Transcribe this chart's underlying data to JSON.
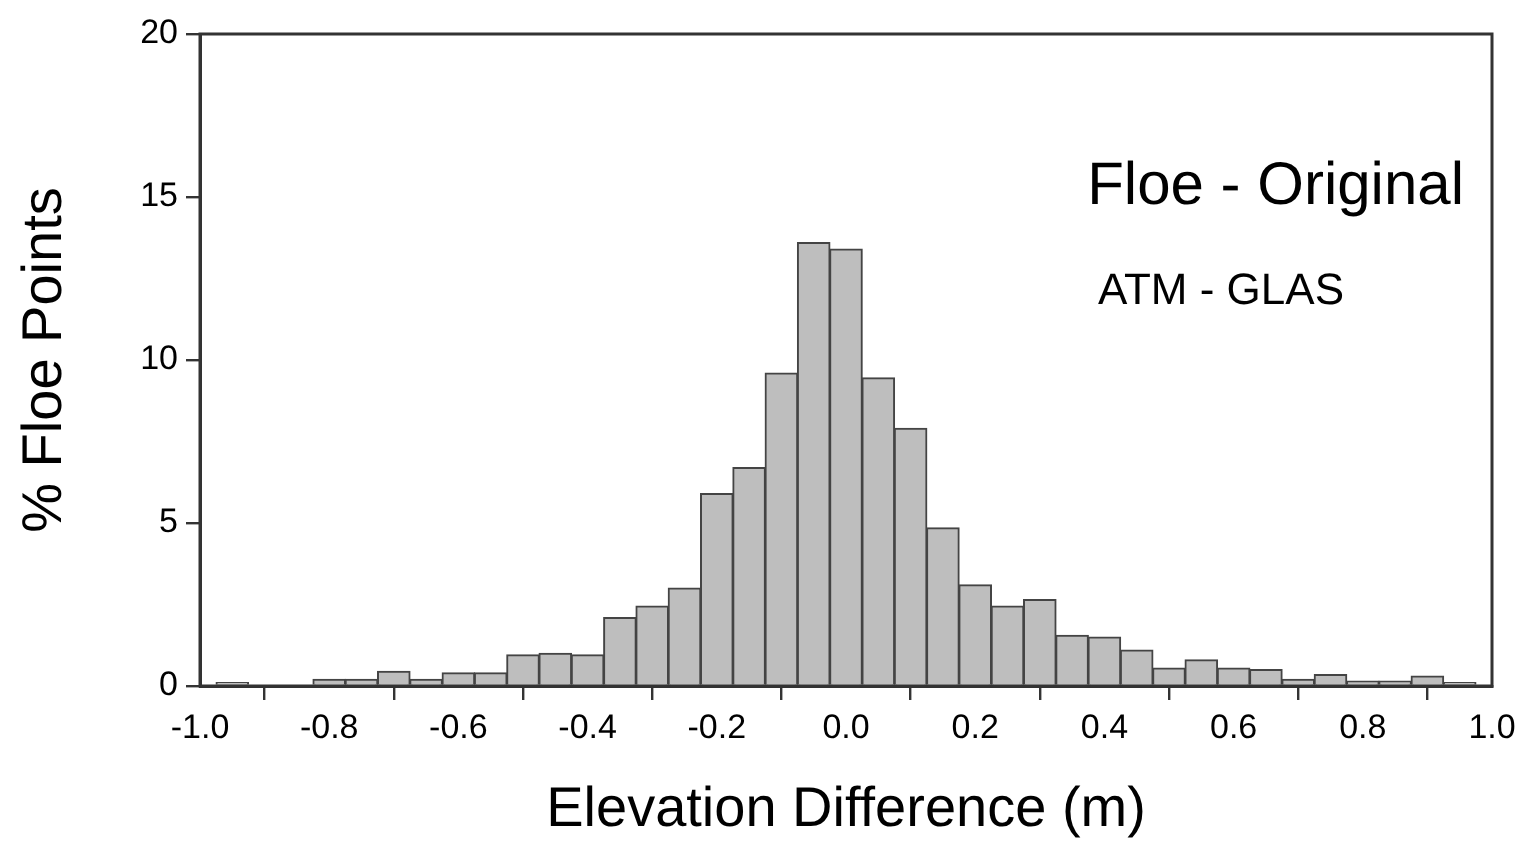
{
  "chart_data": {
    "type": "histogram",
    "xlabel": "Elevation Difference (m)",
    "ylabel": "% Floe Points",
    "annotations": [
      "Floe - Original",
      "ATM - GLAS"
    ],
    "bins": [
      -0.975,
      -0.925,
      -0.875,
      -0.825,
      -0.775,
      -0.725,
      -0.675,
      -0.625,
      -0.575,
      -0.525,
      -0.475,
      -0.425,
      -0.375,
      -0.325,
      -0.275,
      -0.225,
      -0.175,
      -0.125,
      -0.075,
      -0.025,
      0.025,
      0.075,
      0.125,
      0.175,
      0.225,
      0.275,
      0.325,
      0.375,
      0.425,
      0.475,
      0.525,
      0.575,
      0.625,
      0.675,
      0.725,
      0.775,
      0.825,
      0.875,
      0.925,
      0.975
    ],
    "values": [
      0.1,
      0,
      0,
      0.2,
      0.2,
      0.45,
      0.2,
      0.4,
      0.4,
      0.95,
      1.0,
      0.95,
      2.1,
      2.45,
      3.0,
      5.9,
      6.7,
      9.6,
      13.6,
      13.4,
      9.45,
      7.9,
      4.85,
      3.1,
      2.45,
      2.65,
      1.55,
      1.5,
      1.1,
      0.55,
      0.8,
      0.55,
      0.5,
      0.2,
      0.35,
      0.15,
      0.15,
      0.3,
      0.1
    ],
    "color": "#bebebe",
    "grid": false,
    "legend": false,
    "xlim": [
      -1,
      1
    ],
    "xticks": [
      {
        "value": -1,
        "label": "-1.0"
      },
      {
        "value": -0.8,
        "label": "-0.8"
      },
      {
        "value": -0.6,
        "label": "-0.6"
      },
      {
        "value": -0.4,
        "label": "-0.4"
      },
      {
        "value": -0.2,
        "label": "-0.2"
      },
      {
        "value": 0,
        "label": "0.0"
      },
      {
        "value": 0.2,
        "label": "0.2"
      },
      {
        "value": 0.4,
        "label": "0.4"
      },
      {
        "value": 0.6,
        "label": "0.6"
      },
      {
        "value": 0.8,
        "label": "0.8"
      },
      {
        "value": 1,
        "label": "1.0"
      }
    ],
    "ylim": [
      0,
      20
    ],
    "yticks": [
      0,
      5,
      10,
      15,
      20
    ]
  }
}
